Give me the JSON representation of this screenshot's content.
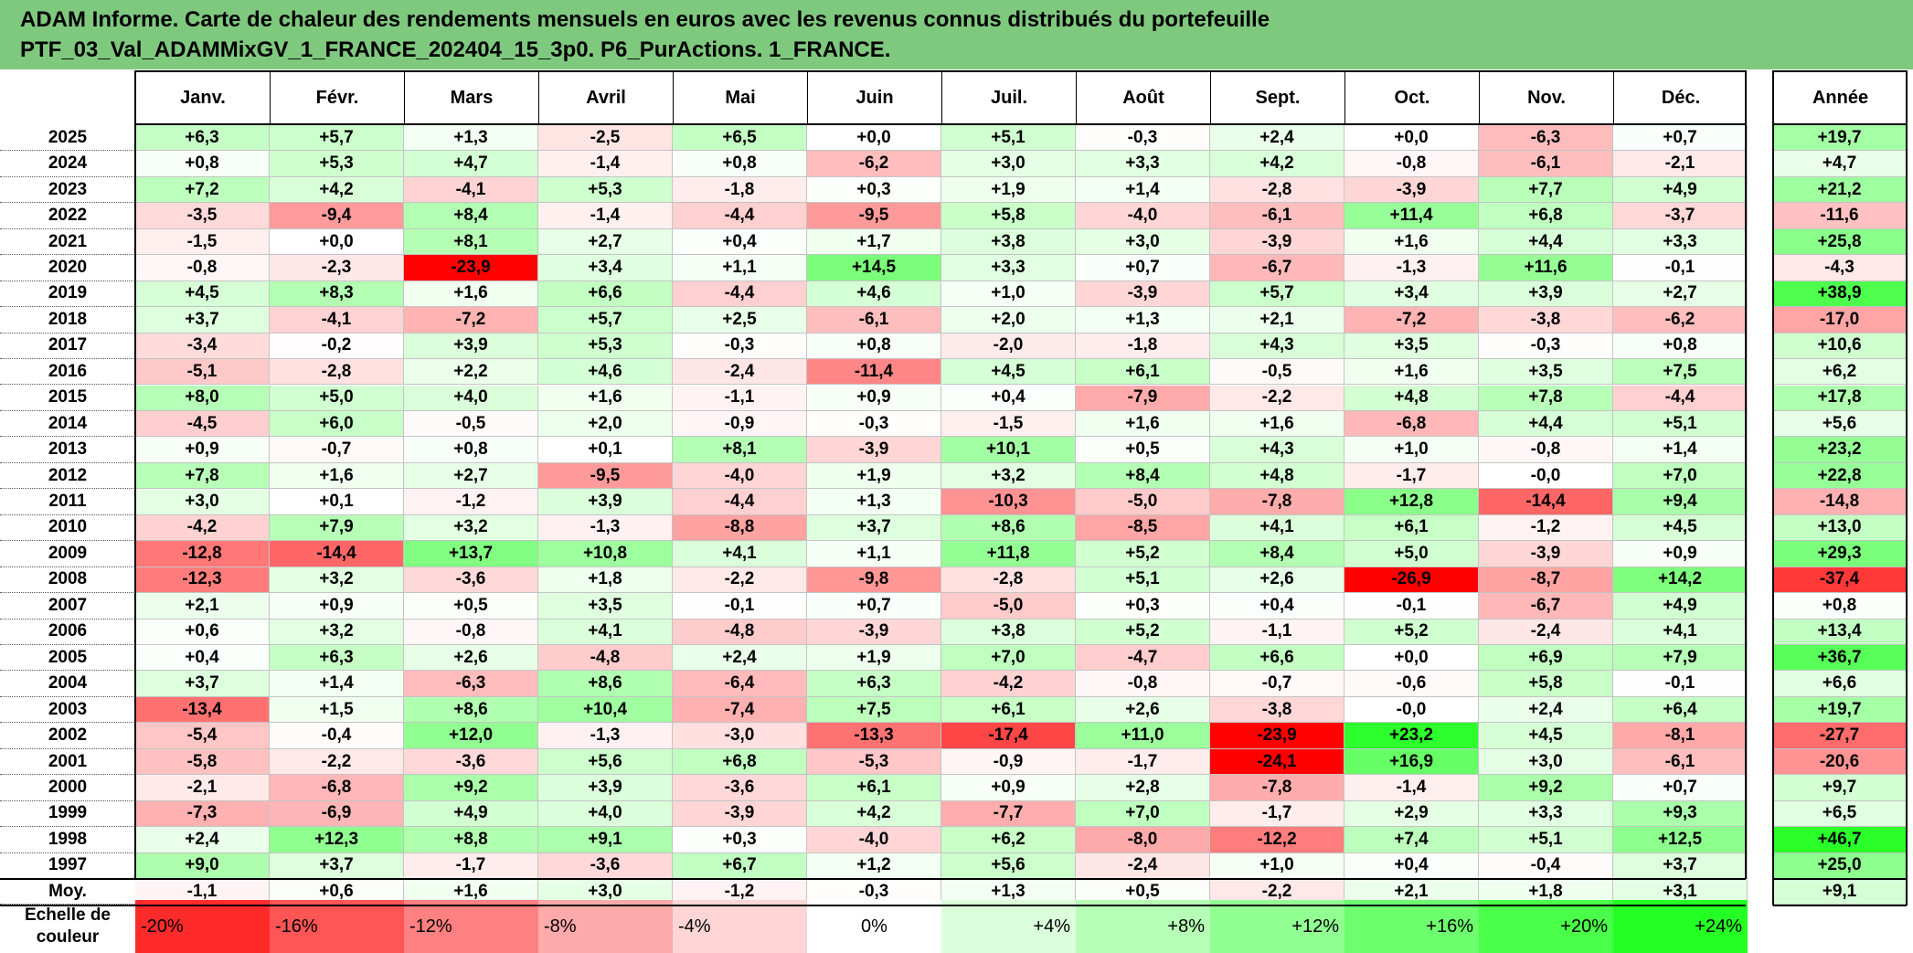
{
  "title": {
    "line1": "ADAM Informe. Carte de chaleur des rendements mensuels en euros avec les revenus connus distribués du portefeuille",
    "line2": "PTF_03_Val_ADAMMixGV_1_FRANCE_202404_15_3p0. P6_PurActions. 1_FRANCE."
  },
  "chart_data": {
    "type": "heatmap",
    "title": "Carte de chaleur des rendements mensuels en euros",
    "months": [
      "Janv.",
      "Févr.",
      "Mars",
      "Avril",
      "Mai",
      "Juin",
      "Juil.",
      "Août",
      "Sept.",
      "Oct.",
      "Nov.",
      "Déc."
    ],
    "year_header": "Année",
    "rows": [
      {
        "year": "2025",
        "months": [
          "+6,3",
          "+5,7",
          "+1,3",
          "-2,5",
          "+6,5",
          "+0,0",
          "+5,1",
          "-0,3",
          "+2,4",
          "+0,0",
          "-6,3",
          "+0,7"
        ],
        "annual": "+19,7"
      },
      {
        "year": "2024",
        "months": [
          "+0,8",
          "+5,3",
          "+4,7",
          "-1,4",
          "+0,8",
          "-6,2",
          "+3,0",
          "+3,3",
          "+4,2",
          "-0,8",
          "-6,1",
          "-2,1"
        ],
        "annual": "+4,7"
      },
      {
        "year": "2023",
        "months": [
          "+7,2",
          "+4,2",
          "-4,1",
          "+5,3",
          "-1,8",
          "+0,3",
          "+1,9",
          "+1,4",
          "-2,8",
          "-3,9",
          "+7,7",
          "+4,9"
        ],
        "annual": "+21,2"
      },
      {
        "year": "2022",
        "months": [
          "-3,5",
          "-9,4",
          "+8,4",
          "-1,4",
          "-4,4",
          "-9,5",
          "+5,8",
          "-4,0",
          "-6,1",
          "+11,4",
          "+6,8",
          "-3,7"
        ],
        "annual": "-11,6"
      },
      {
        "year": "2021",
        "months": [
          "-1,5",
          "+0,0",
          "+8,1",
          "+2,7",
          "+0,4",
          "+1,7",
          "+3,8",
          "+3,0",
          "-3,9",
          "+1,6",
          "+4,4",
          "+3,3"
        ],
        "annual": "+25,8"
      },
      {
        "year": "2020",
        "months": [
          "-0,8",
          "-2,3",
          "-23,9",
          "+3,4",
          "+1,1",
          "+14,5",
          "+3,3",
          "+0,7",
          "-6,7",
          "-1,3",
          "+11,6",
          "-0,1"
        ],
        "annual": "-4,3"
      },
      {
        "year": "2019",
        "months": [
          "+4,5",
          "+8,3",
          "+1,6",
          "+6,6",
          "-4,4",
          "+4,6",
          "+1,0",
          "-3,9",
          "+5,7",
          "+3,4",
          "+3,9",
          "+2,7"
        ],
        "annual": "+38,9"
      },
      {
        "year": "2018",
        "months": [
          "+3,7",
          "-4,1",
          "-7,2",
          "+5,7",
          "+2,5",
          "-6,1",
          "+2,0",
          "+1,3",
          "+2,1",
          "-7,2",
          "-3,8",
          "-6,2"
        ],
        "annual": "-17,0"
      },
      {
        "year": "2017",
        "months": [
          "-3,4",
          "-0,2",
          "+3,9",
          "+5,3",
          "-0,3",
          "+0,8",
          "-2,0",
          "-1,8",
          "+4,3",
          "+3,5",
          "-0,3",
          "+0,8"
        ],
        "annual": "+10,6"
      },
      {
        "year": "2016",
        "months": [
          "-5,1",
          "-2,8",
          "+2,2",
          "+4,6",
          "-2,4",
          "-11,4",
          "+4,5",
          "+6,1",
          "-0,5",
          "+1,6",
          "+3,5",
          "+7,5"
        ],
        "annual": "+6,2"
      },
      {
        "year": "2015",
        "months": [
          "+8,0",
          "+5,0",
          "+4,0",
          "+1,6",
          "-1,1",
          "+0,9",
          "+0,4",
          "-7,9",
          "-2,2",
          "+4,8",
          "+7,8",
          "-4,4"
        ],
        "annual": "+17,8"
      },
      {
        "year": "2014",
        "months": [
          "-4,5",
          "+6,0",
          "-0,5",
          "+2,0",
          "-0,9",
          "-0,3",
          "-1,5",
          "+1,6",
          "+1,6",
          "-6,8",
          "+4,4",
          "+5,1"
        ],
        "annual": "+5,6"
      },
      {
        "year": "2013",
        "months": [
          "+0,9",
          "-0,7",
          "+0,8",
          "+0,1",
          "+8,1",
          "-3,9",
          "+10,1",
          "+0,5",
          "+4,3",
          "+1,0",
          "-0,8",
          "+1,4"
        ],
        "annual": "+23,2"
      },
      {
        "year": "2012",
        "months": [
          "+7,8",
          "+1,6",
          "+2,7",
          "-9,5",
          "-4,0",
          "+1,9",
          "+3,2",
          "+8,4",
          "+4,8",
          "-1,7",
          "-0,0",
          "+7,0"
        ],
        "annual": "+22,8"
      },
      {
        "year": "2011",
        "months": [
          "+3,0",
          "+0,1",
          "-1,2",
          "+3,9",
          "-4,4",
          "+1,3",
          "-10,3",
          "-5,0",
          "-7,8",
          "+12,8",
          "-14,4",
          "+9,4"
        ],
        "annual": "-14,8"
      },
      {
        "year": "2010",
        "months": [
          "-4,2",
          "+7,9",
          "+3,2",
          "-1,3",
          "-8,8",
          "+3,7",
          "+8,6",
          "-8,5",
          "+4,1",
          "+6,1",
          "-1,2",
          "+4,5"
        ],
        "annual": "+13,0"
      },
      {
        "year": "2009",
        "months": [
          "-12,8",
          "-14,4",
          "+13,7",
          "+10,8",
          "+4,1",
          "+1,1",
          "+11,8",
          "+5,2",
          "+8,4",
          "+5,0",
          "-3,9",
          "+0,9"
        ],
        "annual": "+29,3"
      },
      {
        "year": "2008",
        "months": [
          "-12,3",
          "+3,2",
          "-3,6",
          "+1,8",
          "-2,2",
          "-9,8",
          "-2,8",
          "+5,1",
          "+2,6",
          "-26,9",
          "-8,7",
          "+14,2"
        ],
        "annual": "-37,4"
      },
      {
        "year": "2007",
        "months": [
          "+2,1",
          "+0,9",
          "+0,5",
          "+3,5",
          "-0,1",
          "+0,7",
          "-5,0",
          "+0,3",
          "+0,4",
          "-0,1",
          "-6,7",
          "+4,9"
        ],
        "annual": "+0,8"
      },
      {
        "year": "2006",
        "months": [
          "+0,6",
          "+3,2",
          "-0,8",
          "+4,1",
          "-4,8",
          "-3,9",
          "+3,8",
          "+5,2",
          "-1,1",
          "+5,2",
          "-2,4",
          "+4,1"
        ],
        "annual": "+13,4"
      },
      {
        "year": "2005",
        "months": [
          "+0,4",
          "+6,3",
          "+2,6",
          "-4,8",
          "+2,4",
          "+1,9",
          "+7,0",
          "-4,7",
          "+6,6",
          "+0,0",
          "+6,9",
          "+7,9"
        ],
        "annual": "+36,7"
      },
      {
        "year": "2004",
        "months": [
          "+3,7",
          "+1,4",
          "-6,3",
          "+8,6",
          "-6,4",
          "+6,3",
          "-4,2",
          "-0,8",
          "-0,7",
          "-0,6",
          "+5,8",
          "-0,1"
        ],
        "annual": "+6,6"
      },
      {
        "year": "2003",
        "months": [
          "-13,4",
          "+1,5",
          "+8,6",
          "+10,4",
          "-7,4",
          "+7,5",
          "+6,1",
          "+2,6",
          "-3,8",
          "-0,0",
          "+2,4",
          "+6,4"
        ],
        "annual": "+19,7"
      },
      {
        "year": "2002",
        "months": [
          "-5,4",
          "-0,4",
          "+12,0",
          "-1,3",
          "-3,0",
          "-13,3",
          "-17,4",
          "+11,0",
          "-23,9",
          "+23,2",
          "+4,5",
          "-8,1"
        ],
        "annual": "-27,7"
      },
      {
        "year": "2001",
        "months": [
          "-5,8",
          "-2,2",
          "-3,6",
          "+5,6",
          "+6,8",
          "-5,3",
          "-0,9",
          "-1,7",
          "-24,1",
          "+16,9",
          "+3,0",
          "-6,1"
        ],
        "annual": "-20,6"
      },
      {
        "year": "2000",
        "months": [
          "-2,1",
          "-6,8",
          "+9,2",
          "+3,9",
          "-3,6",
          "+6,1",
          "+0,9",
          "+2,8",
          "-7,8",
          "-1,4",
          "+9,2",
          "+0,7"
        ],
        "annual": "+9,7"
      },
      {
        "year": "1999",
        "months": [
          "-7,3",
          "-6,9",
          "+4,9",
          "+4,0",
          "-3,9",
          "+4,2",
          "-7,7",
          "+7,0",
          "-1,7",
          "+2,9",
          "+3,3",
          "+9,3"
        ],
        "annual": "+6,5"
      },
      {
        "year": "1998",
        "months": [
          "+2,4",
          "+12,3",
          "+8,8",
          "+9,1",
          "+0,3",
          "-4,0",
          "+6,2",
          "-8,0",
          "-12,2",
          "+7,4",
          "+5,1",
          "+12,5"
        ],
        "annual": "+46,7"
      },
      {
        "year": "1997",
        "months": [
          "+9,0",
          "+3,7",
          "-1,7",
          "-3,6",
          "+6,7",
          "+1,2",
          "+5,6",
          "-2,4",
          "+1,0",
          "+0,4",
          "-0,4",
          "+3,7"
        ],
        "annual": "+25,0"
      }
    ],
    "average": {
      "label": "Moy.",
      "months": [
        "-1,1",
        "+0,6",
        "+1,6",
        "+3,0",
        "-1,2",
        "-0,3",
        "+1,3",
        "+0,5",
        "-2,2",
        "+2,1",
        "+1,8",
        "+3,1"
      ],
      "annual": "+9,1"
    },
    "color_scale": {
      "label_line1": "Echelle de",
      "label_line2": "couleur",
      "stops": [
        {
          "label": "-20%",
          "value": -20
        },
        {
          "label": "-16%",
          "value": -16
        },
        {
          "label": "-12%",
          "value": -12
        },
        {
          "label": "-8%",
          "value": -8
        },
        {
          "label": "-4%",
          "value": -4
        },
        {
          "label": "0%",
          "value": 0
        },
        {
          "label": "+4%",
          "value": 4
        },
        {
          "label": "+8%",
          "value": 8
        },
        {
          "label": "+12%",
          "value": 12
        },
        {
          "label": "+16%",
          "value": 16
        },
        {
          "label": "+20%",
          "value": 20
        },
        {
          "label": "+24%",
          "value": 24
        }
      ]
    }
  }
}
